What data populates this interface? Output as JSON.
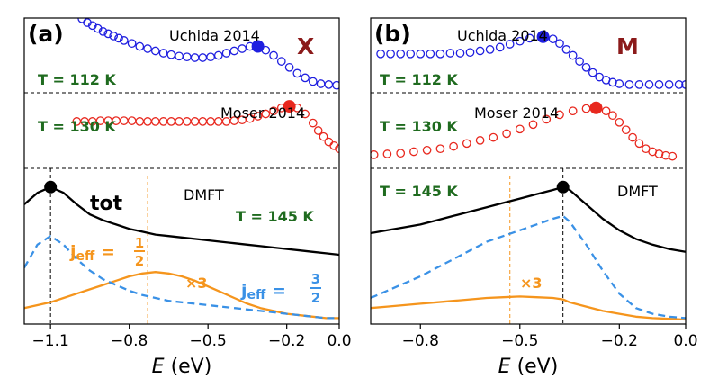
{
  "colors": {
    "dmft_total": "#000000",
    "j_half": "#f5951d",
    "j_three_half": "#3a91e6",
    "uchida": "#1f1fe0",
    "moser": "#e8281e",
    "temperature": "#1f6b1f",
    "kpoint": "#8b1a1a"
  },
  "chart_data": [
    {
      "type": "line",
      "panel_label": "(a)",
      "kpoint": "X",
      "xlabel_italic": "E",
      "xlabel_unit": "(eV)",
      "xlim": [
        -1.2,
        0.0
      ],
      "xticks": [
        -1.1,
        -0.8,
        -0.5,
        -0.2,
        0.0
      ],
      "xtick_labels": [
        "−1.1",
        "−0.8",
        "−0.5",
        "−0.2",
        "0.0"
      ],
      "experiments": [
        {
          "name": "Uchida 2014",
          "temperature": "T = 112 K",
          "peak": [
            -0.31,
            0.62
          ],
          "x": [
            -0.98,
            -0.96,
            -0.94,
            -0.92,
            -0.9,
            -0.88,
            -0.86,
            -0.84,
            -0.82,
            -0.79,
            -0.76,
            -0.73,
            -0.7,
            -0.67,
            -0.64,
            -0.61,
            -0.58,
            -0.55,
            -0.52,
            -0.49,
            -0.46,
            -0.43,
            -0.4,
            -0.37,
            -0.34,
            -0.31,
            -0.28,
            -0.25,
            -0.22,
            -0.19,
            -0.16,
            -0.13,
            -0.1,
            -0.07,
            -0.04,
            -0.01
          ],
          "y": [
            0.99,
            0.94,
            0.9,
            0.86,
            0.82,
            0.79,
            0.76,
            0.73,
            0.7,
            0.66,
            0.62,
            0.59,
            0.56,
            0.53,
            0.51,
            0.49,
            0.48,
            0.47,
            0.47,
            0.48,
            0.5,
            0.53,
            0.56,
            0.59,
            0.62,
            0.62,
            0.57,
            0.5,
            0.42,
            0.34,
            0.26,
            0.2,
            0.15,
            0.12,
            0.11,
            0.1
          ]
        },
        {
          "name": "Moser 2014",
          "temperature": "T = 130 K",
          "peak": [
            -0.19,
            0.82
          ],
          "x": [
            -1.0,
            -0.97,
            -0.94,
            -0.91,
            -0.88,
            -0.85,
            -0.82,
            -0.79,
            -0.76,
            -0.73,
            -0.7,
            -0.67,
            -0.64,
            -0.61,
            -0.58,
            -0.55,
            -0.52,
            -0.49,
            -0.46,
            -0.43,
            -0.4,
            -0.37,
            -0.34,
            -0.31,
            -0.28,
            -0.25,
            -0.22,
            -0.19,
            -0.16,
            -0.13,
            -0.1,
            -0.08,
            -0.06,
            -0.04,
            -0.02,
            0.0
          ],
          "y": [
            0.62,
            0.62,
            0.62,
            0.63,
            0.63,
            0.63,
            0.63,
            0.63,
            0.62,
            0.62,
            0.62,
            0.62,
            0.62,
            0.62,
            0.62,
            0.62,
            0.62,
            0.62,
            0.62,
            0.62,
            0.63,
            0.64,
            0.66,
            0.69,
            0.72,
            0.76,
            0.8,
            0.82,
            0.8,
            0.72,
            0.6,
            0.5,
            0.42,
            0.35,
            0.3,
            0.26
          ]
        }
      ],
      "dmft": {
        "label": "DMFT",
        "temperature": "T = 145 K",
        "total_label": "tot",
        "total_peak": [
          -1.1,
          0.92
        ],
        "j_half_line_x": -0.73,
        "j_half_factor": "×3",
        "x": [
          -1.2,
          -1.15,
          -1.1,
          -1.05,
          -1.0,
          -0.95,
          -0.9,
          -0.85,
          -0.8,
          -0.75,
          -0.7,
          -0.65,
          -0.6,
          -0.55,
          -0.5,
          -0.45,
          -0.4,
          -0.35,
          -0.3,
          -0.25,
          -0.2,
          -0.15,
          -0.1,
          -0.05,
          0.0
        ],
        "series": [
          {
            "name": "tot",
            "values": [
              0.8,
              0.88,
              0.92,
              0.88,
              0.8,
              0.73,
              0.69,
              0.66,
              0.63,
              0.61,
              0.59,
              0.58,
              0.57,
              0.56,
              0.55,
              0.54,
              0.53,
              0.52,
              0.51,
              0.5,
              0.49,
              0.48,
              0.47,
              0.46,
              0.45
            ]
          },
          {
            "name": "j_eff = 1/2 (×3)",
            "values": [
              0.08,
              0.1,
              0.12,
              0.15,
              0.18,
              0.21,
              0.24,
              0.27,
              0.3,
              0.32,
              0.33,
              0.32,
              0.3,
              0.27,
              0.23,
              0.19,
              0.15,
              0.11,
              0.08,
              0.06,
              0.04,
              0.03,
              0.02,
              0.01,
              0.01
            ]
          },
          {
            "name": "j_eff = 3/2",
            "values": [
              0.36,
              0.52,
              0.58,
              0.52,
              0.42,
              0.34,
              0.28,
              0.24,
              0.2,
              0.17,
              0.15,
              0.13,
              0.12,
              0.11,
              0.1,
              0.09,
              0.08,
              0.07,
              0.06,
              0.05,
              0.04,
              0.03,
              0.02,
              0.01,
              0.01
            ]
          }
        ]
      }
    },
    {
      "type": "line",
      "panel_label": "(b)",
      "kpoint": "M",
      "xlabel_italic": "E",
      "xlabel_unit": "(eV)",
      "xlim": [
        -0.95,
        0.0
      ],
      "xticks": [
        -0.8,
        -0.5,
        -0.2,
        0.0
      ],
      "xtick_labels": [
        "−0.8",
        "−0.5",
        "−0.2",
        "0.0"
      ],
      "experiments": [
        {
          "name": "Uchida 2014",
          "temperature": "T = 112 K",
          "peak": [
            -0.43,
            0.75
          ],
          "x": [
            -0.92,
            -0.89,
            -0.86,
            -0.83,
            -0.8,
            -0.77,
            -0.74,
            -0.71,
            -0.68,
            -0.65,
            -0.62,
            -0.59,
            -0.56,
            -0.53,
            -0.5,
            -0.47,
            -0.43,
            -0.4,
            -0.38,
            -0.36,
            -0.34,
            -0.32,
            -0.3,
            -0.28,
            -0.26,
            -0.24,
            -0.22,
            -0.2,
            -0.17,
            -0.14,
            -0.11,
            -0.08,
            -0.05,
            -0.02,
            0.0
          ],
          "y": [
            0.52,
            0.52,
            0.52,
            0.52,
            0.52,
            0.52,
            0.52,
            0.53,
            0.53,
            0.54,
            0.56,
            0.58,
            0.61,
            0.65,
            0.69,
            0.73,
            0.75,
            0.72,
            0.66,
            0.58,
            0.5,
            0.42,
            0.34,
            0.27,
            0.21,
            0.17,
            0.14,
            0.12,
            0.11,
            0.11,
            0.11,
            0.11,
            0.11,
            0.11,
            0.11
          ]
        },
        {
          "name": "Moser 2014",
          "temperature": "T = 130 K",
          "peak": [
            -0.27,
            0.8
          ],
          "x": [
            -0.94,
            -0.9,
            -0.86,
            -0.82,
            -0.78,
            -0.74,
            -0.7,
            -0.66,
            -0.62,
            -0.58,
            -0.54,
            -0.5,
            -0.46,
            -0.42,
            -0.38,
            -0.34,
            -0.3,
            -0.27,
            -0.24,
            -0.22,
            -0.2,
            -0.18,
            -0.16,
            -0.14,
            -0.12,
            -0.1,
            -0.08,
            -0.06,
            -0.04
          ],
          "y": [
            0.18,
            0.19,
            0.2,
            0.22,
            0.24,
            0.26,
            0.29,
            0.33,
            0.37,
            0.41,
            0.46,
            0.52,
            0.58,
            0.65,
            0.71,
            0.76,
            0.79,
            0.8,
            0.76,
            0.7,
            0.61,
            0.51,
            0.41,
            0.33,
            0.26,
            0.22,
            0.19,
            0.17,
            0.16
          ]
        }
      ],
      "dmft": {
        "label": "DMFT",
        "temperature": "T = 145 K",
        "total_peak": [
          -0.37,
          0.92
        ],
        "j_half_line_x": -0.53,
        "j_half_factor": "×3",
        "x": [
          -0.95,
          -0.9,
          -0.85,
          -0.8,
          -0.75,
          -0.7,
          -0.65,
          -0.6,
          -0.55,
          -0.5,
          -0.45,
          -0.4,
          -0.37,
          -0.35,
          -0.3,
          -0.25,
          -0.2,
          -0.15,
          -0.1,
          -0.05,
          0.0
        ],
        "series": [
          {
            "name": "tot",
            "values": [
              0.6,
              0.62,
              0.64,
              0.66,
              0.69,
              0.72,
              0.75,
              0.78,
              0.81,
              0.84,
              0.87,
              0.9,
              0.92,
              0.9,
              0.8,
              0.7,
              0.62,
              0.56,
              0.52,
              0.49,
              0.47
            ]
          },
          {
            "name": "j_eff = 1/2 (×3)",
            "values": [
              0.08,
              0.09,
              0.1,
              0.11,
              0.12,
              0.13,
              0.14,
              0.15,
              0.155,
              0.16,
              0.155,
              0.15,
              0.14,
              0.12,
              0.09,
              0.06,
              0.04,
              0.02,
              0.01,
              0.005,
              0.0
            ]
          },
          {
            "name": "j_eff = 3/2",
            "values": [
              0.15,
              0.2,
              0.25,
              0.3,
              0.36,
              0.42,
              0.48,
              0.54,
              0.58,
              0.62,
              0.66,
              0.7,
              0.72,
              0.68,
              0.52,
              0.34,
              0.18,
              0.08,
              0.04,
              0.02,
              0.01
            ]
          }
        ]
      }
    }
  ]
}
